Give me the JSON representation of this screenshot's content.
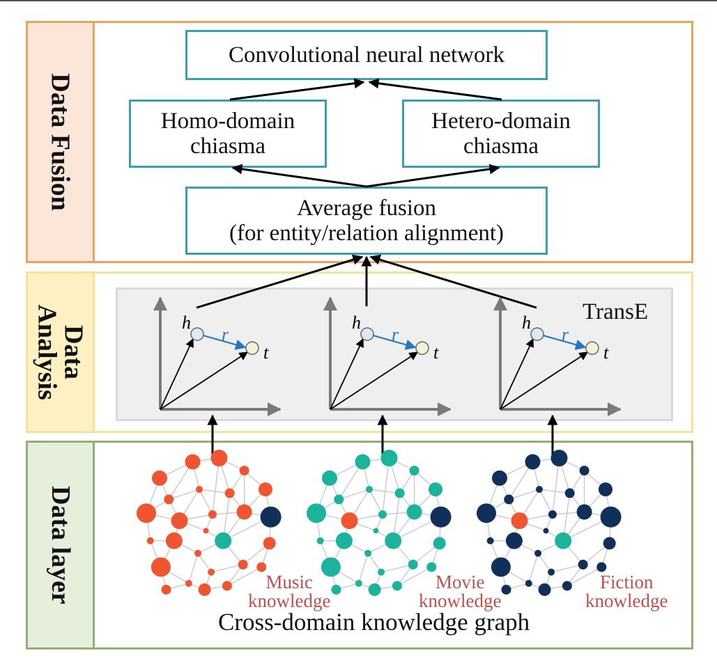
{
  "layers": {
    "fusion": "Data Fusion",
    "analysis_line1": "Data",
    "analysis_line2": "Analysis",
    "data": "Data layer"
  },
  "fusion": {
    "cnn": "Convolutional neural network",
    "homo_line1": "Homo-domain",
    "homo_line2": "chiasma",
    "hetero_line1": "Hetero-domain",
    "hetero_line2": "chiasma",
    "avg_line1": "Average fusion",
    "avg_line2": "(for entity/relation alignment)"
  },
  "analysis": {
    "model": "TransE",
    "head": "h",
    "relation": "r",
    "tail": "t"
  },
  "data_layer": {
    "graphs": [
      {
        "line1": "Music",
        "line2": "knowledge"
      },
      {
        "line1": "Movie",
        "line2": "knowledge"
      },
      {
        "line1": "Fiction",
        "line2": "knowledge"
      }
    ],
    "caption": "Cross-domain knowledge graph"
  },
  "colors": {
    "fusion_border": "#eba25f",
    "fusion_fill": "#fbe6d9",
    "analysis_border": "#f6e39a",
    "analysis_fill": "#fdf1c4",
    "data_border": "#8db46e",
    "data_fill": "#e6efdb",
    "box_border": "#3a9fb6",
    "inner_panel": "#efefef",
    "relation_blue": "#2276c2",
    "music_node": "#ee5530",
    "movie_node": "#1bb39b",
    "fiction_node": "#10305a",
    "graph_label": "#c0504d"
  }
}
